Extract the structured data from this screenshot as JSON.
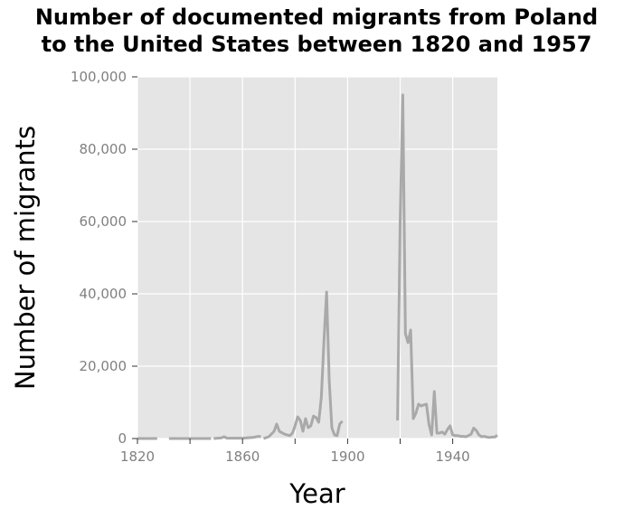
{
  "chart_data": {
    "type": "line",
    "title_lines": [
      "Number of documented migrants from Poland",
      "to the United States between 1820 and 1957"
    ],
    "xlabel": "Year",
    "ylabel": "Number of migrants",
    "xlim": [
      1820,
      1957
    ],
    "ylim": [
      0,
      100000
    ],
    "x_ticks": [
      1820,
      1860,
      1900,
      1940
    ],
    "x_tick_labels": [
      "1820",
      "1860",
      "1900",
      "1940"
    ],
    "y_ticks": [
      0,
      20000,
      40000,
      60000,
      80000,
      100000
    ],
    "y_tick_labels": [
      "0",
      "20,000",
      "40,000",
      "60,000",
      "80,000",
      "100,000"
    ],
    "grid": true,
    "colors": {
      "panel": "#e5e5e5",
      "grid": "#ffffff",
      "line": "#a9a9a9",
      "axis_text": "#808080"
    },
    "series": [
      {
        "segments": [
          [
            [
              1820,
              0
            ],
            [
              1827,
              0
            ]
          ],
          [
            [
              1827,
              0
            ]
          ],
          [
            [
              1832,
              0
            ],
            [
              1839,
              0
            ],
            [
              1840,
              0
            ]
          ],
          [
            [
              1840,
              0
            ],
            [
              1848,
              0
            ]
          ],
          [
            [
              1849,
              0
            ],
            [
              1852,
              200
            ],
            [
              1853,
              500
            ],
            [
              1854,
              100
            ],
            [
              1860,
              100
            ],
            [
              1864,
              300
            ],
            [
              1866,
              600
            ],
            [
              1867,
              500
            ]
          ],
          [
            [
              1868,
              0
            ],
            [
              1870,
              500
            ],
            [
              1872,
              2000
            ],
            [
              1873,
              4000
            ],
            [
              1874,
              2000
            ],
            [
              1876,
              1200
            ],
            [
              1878,
              800
            ],
            [
              1879,
              1500
            ],
            [
              1880,
              3500
            ],
            [
              1881,
              6000
            ],
            [
              1882,
              5000
            ],
            [
              1883,
              2000
            ],
            [
              1884,
              5500
            ],
            [
              1885,
              3000
            ],
            [
              1886,
              3500
            ],
            [
              1887,
              6200
            ],
            [
              1888,
              5800
            ],
            [
              1889,
              4500
            ],
            [
              1890,
              11500
            ],
            [
              1891,
              27000
            ],
            [
              1892,
              40500
            ],
            [
              1893,
              16000
            ],
            [
              1894,
              3000
            ],
            [
              1895,
              1000
            ],
            [
              1896,
              800
            ],
            [
              1897,
              4000
            ],
            [
              1898,
              4800
            ]
          ],
          [
            [
              1919,
              5000
            ],
            [
              1920,
              60000
            ],
            [
              1921,
              95000
            ],
            [
              1922,
              29000
            ],
            [
              1923,
              26500
            ],
            [
              1924,
              30000
            ],
            [
              1925,
              5500
            ],
            [
              1926,
              7000
            ],
            [
              1927,
              9500
            ],
            [
              1928,
              9000
            ],
            [
              1929,
              9300
            ],
            [
              1930,
              9500
            ],
            [
              1931,
              3800
            ],
            [
              1932,
              1000
            ],
            [
              1933,
              13000
            ],
            [
              1934,
              1500
            ],
            [
              1935,
              1500
            ],
            [
              1936,
              1800
            ],
            [
              1937,
              1200
            ],
            [
              1938,
              2500
            ],
            [
              1939,
              3500
            ],
            [
              1940,
              1000
            ],
            [
              1941,
              800
            ],
            [
              1942,
              800
            ],
            [
              1943,
              600
            ],
            [
              1944,
              600
            ],
            [
              1945,
              500
            ],
            [
              1946,
              800
            ],
            [
              1947,
              1200
            ],
            [
              1948,
              2900
            ],
            [
              1949,
              2200
            ],
            [
              1950,
              1000
            ],
            [
              1951,
              500
            ],
            [
              1952,
              600
            ],
            [
              1953,
              400
            ],
            [
              1954,
              300
            ],
            [
              1955,
              400
            ],
            [
              1956,
              400
            ],
            [
              1957,
              900
            ]
          ]
        ]
      }
    ]
  }
}
